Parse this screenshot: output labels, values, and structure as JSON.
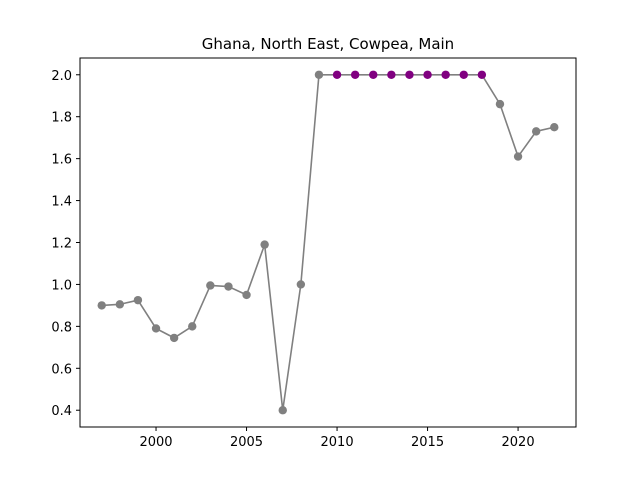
{
  "chart_data": {
    "type": "line",
    "title": "Ghana, North East, Cowpea, Main",
    "xlabel": "",
    "ylabel": "",
    "xlim": [
      1995.8,
      2023.2
    ],
    "ylim": [
      0.32,
      2.08
    ],
    "xticks": [
      2000,
      2005,
      2010,
      2015,
      2020
    ],
    "yticks": [
      0.4,
      0.6,
      0.8,
      1.0,
      1.2,
      1.4,
      1.6,
      1.8,
      2.0
    ],
    "ytick_labels": [
      "0.4",
      "0.6",
      "0.8",
      "1.0",
      "1.2",
      "1.4",
      "1.6",
      "1.8",
      "2.0"
    ],
    "grid": false,
    "line_color": "#808080",
    "series": [
      {
        "x": [
          1997,
          1998,
          1999,
          2000,
          2001,
          2002,
          2003,
          2004,
          2005,
          2006,
          2007,
          2008,
          2009,
          2010,
          2011,
          2012,
          2013,
          2014,
          2015,
          2016,
          2017,
          2018,
          2019,
          2020,
          2021,
          2022
        ],
        "y": [
          0.9,
          0.905,
          0.925,
          0.79,
          0.745,
          0.8,
          0.995,
          0.99,
          0.95,
          1.19,
          0.4,
          1.0,
          2.0,
          2.0,
          2.0,
          2.0,
          2.0,
          2.0,
          2.0,
          2.0,
          2.0,
          2.0,
          1.86,
          1.61,
          1.73,
          1.75
        ],
        "marker_colors": [
          "#808080",
          "#808080",
          "#808080",
          "#808080",
          "#808080",
          "#808080",
          "#808080",
          "#808080",
          "#808080",
          "#808080",
          "#808080",
          "#808080",
          "#808080",
          "#800080",
          "#800080",
          "#800080",
          "#800080",
          "#800080",
          "#800080",
          "#800080",
          "#800080",
          "#800080",
          "#808080",
          "#808080",
          "#808080",
          "#808080"
        ]
      }
    ]
  }
}
